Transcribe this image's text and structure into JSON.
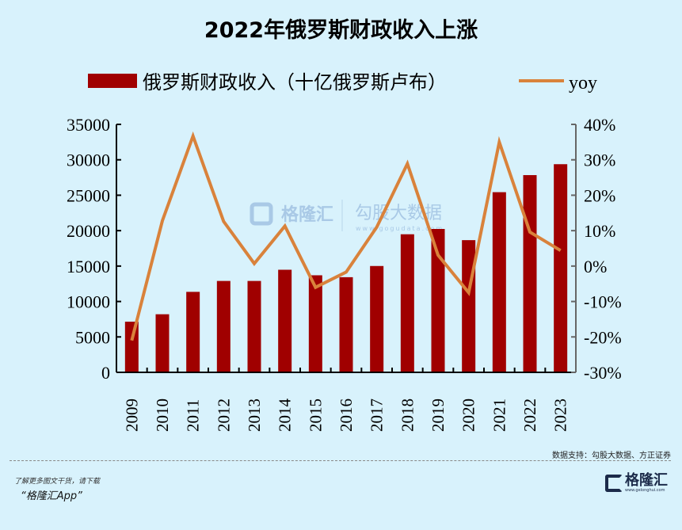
{
  "title": "2022年俄罗斯财政收入上涨",
  "source": "数据支持：勾股大数据、方正证券",
  "promo_line1": "了解更多图文干货，请下载",
  "promo_line2": "“格隆汇App”",
  "logo": {
    "name": "格隆汇",
    "url": "www.gelonghui.com"
  },
  "watermark": {
    "left": "格隆汇",
    "right": "勾股大数据",
    "right_url": "www.gogudata.com"
  },
  "colors": {
    "bar": "#a00000",
    "line": "#d9823b",
    "background": "#d8f2fc"
  },
  "chart_data": {
    "type": "bar+line",
    "title": "2022年俄罗斯财政收入上涨",
    "categories": [
      "2009",
      "2010",
      "2011",
      "2012",
      "2013",
      "2014",
      "2015",
      "2016",
      "2017",
      "2018",
      "2019",
      "2020",
      "2021",
      "2022",
      "2023"
    ],
    "series": [
      {
        "name": "俄罗斯财政收入（十亿俄罗斯卢布）",
        "type": "bar",
        "axis": "left",
        "values": [
          7150,
          8200,
          11360,
          12900,
          12900,
          14480,
          13700,
          13430,
          15010,
          19490,
          20240,
          18660,
          25430,
          27840,
          29380
        ]
      },
      {
        "name": "yoy",
        "type": "line",
        "axis": "right",
        "values": [
          -21,
          12.8,
          36.7,
          12.6,
          0.7,
          11.3,
          -6,
          -1.7,
          11,
          28.9,
          3.1,
          -7.5,
          35,
          9.6,
          4.4
        ]
      }
    ],
    "left_axis": {
      "ylim": [
        0,
        35000
      ],
      "ticks": [
        "0",
        "5000",
        "10000",
        "15000",
        "20000",
        "25000",
        "30000",
        "35000"
      ]
    },
    "right_axis": {
      "ylim": [
        -30,
        40
      ],
      "ticks": [
        "-30%",
        "-20%",
        "-10%",
        "0%",
        "10%",
        "20%",
        "30%",
        "40%"
      ]
    },
    "legend_position": "top",
    "grid": false
  }
}
